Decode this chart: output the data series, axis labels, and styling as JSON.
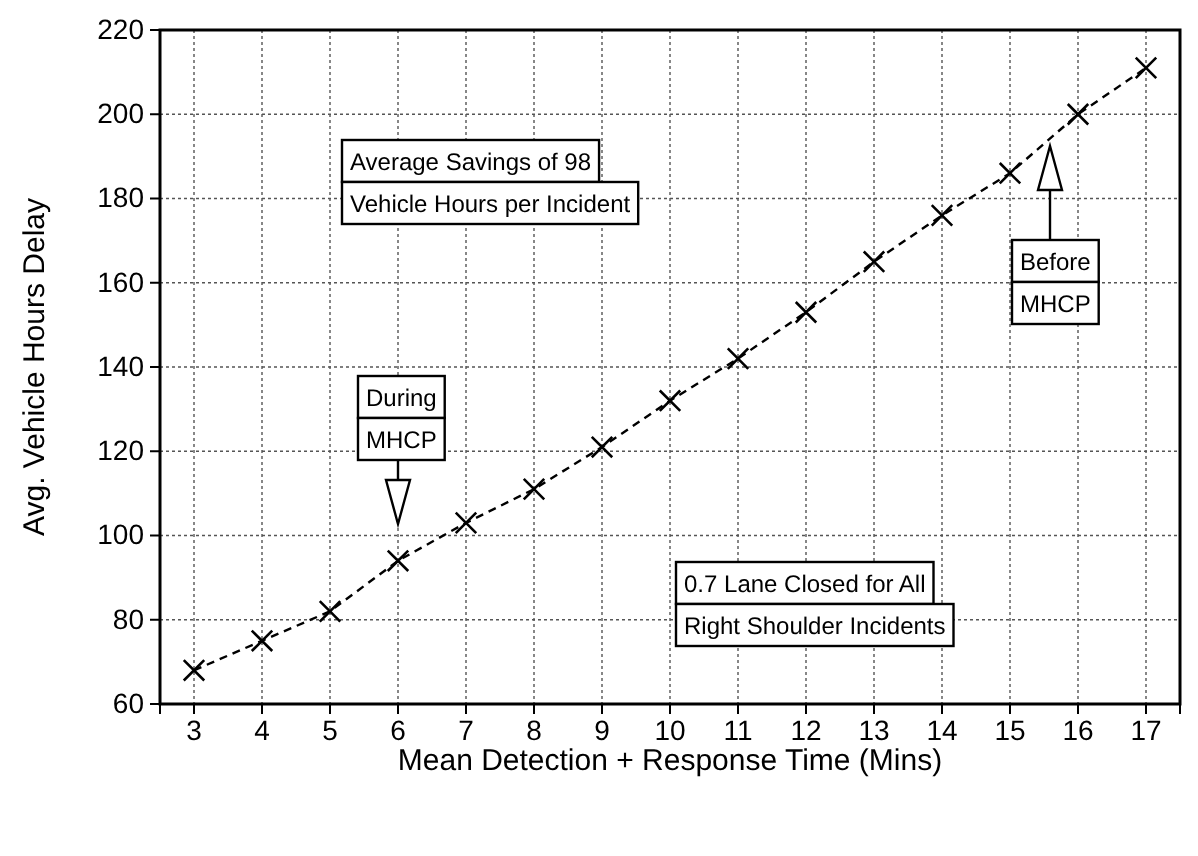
{
  "chart_data": {
    "type": "line",
    "xlabel": "Mean Detection + Response Time (Mins)",
    "ylabel": "Avg. Vehicle Hours Delay",
    "x": [
      3,
      4,
      5,
      6,
      7,
      8,
      9,
      10,
      11,
      12,
      13,
      14,
      15,
      16,
      17
    ],
    "series": [
      {
        "color": "#000000",
        "values": [
          68,
          75,
          82,
          94,
          103,
          111,
          121,
          132,
          142,
          153,
          165,
          176,
          186,
          200,
          211
        ]
      }
    ],
    "xlim": [
      2.5,
      17.5
    ],
    "xticks": [
      3,
      4,
      5,
      6,
      7,
      8,
      9,
      10,
      11,
      12,
      13,
      14,
      15,
      16,
      17
    ],
    "ylim": [
      60,
      220
    ],
    "yticks": [
      60,
      80,
      100,
      120,
      140,
      160,
      180,
      200,
      220
    ],
    "grid": true,
    "marker": "cross",
    "line_style": "dashed",
    "annotations": [
      "Average Savings of 98\nVehicle Hours per Incident",
      "During\nMHCP",
      "Before\nMHCP",
      "0.7 Lane Closed for All\nRight Shoulder Incidents"
    ]
  }
}
